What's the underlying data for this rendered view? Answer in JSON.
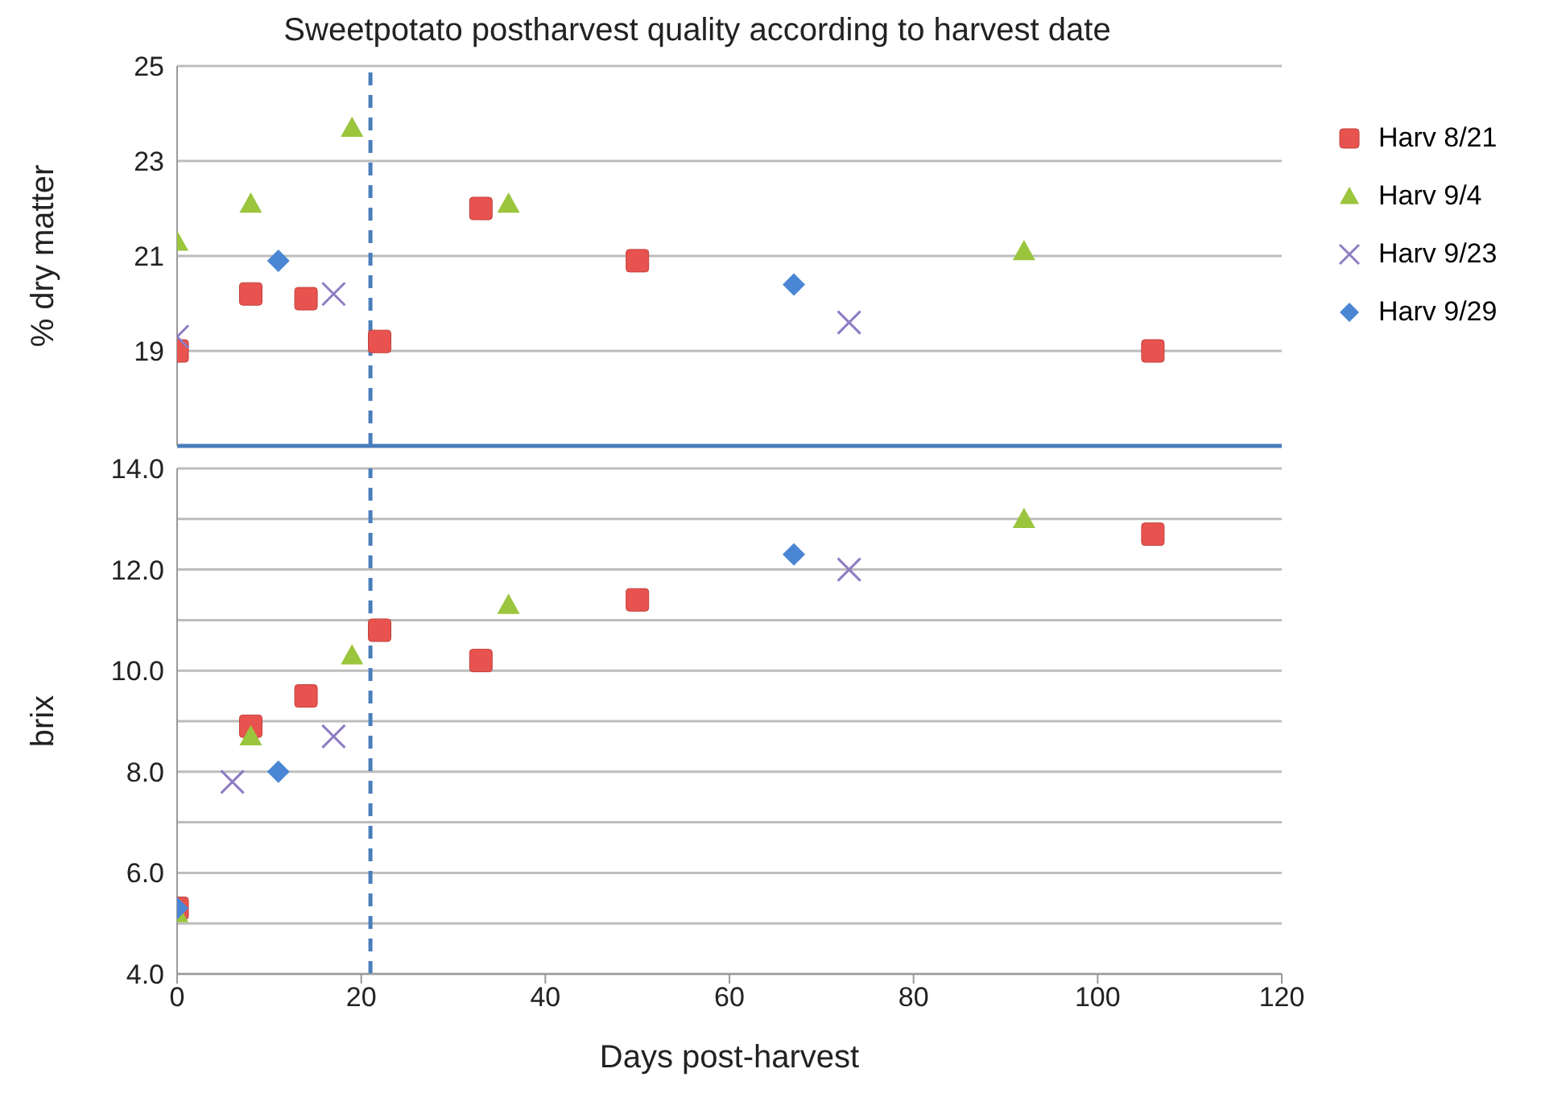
{
  "chart_data": [
    {
      "type": "scatter",
      "title": "Sweetpotato postharvest quality according to harvest date",
      "ylabel": "% dry matter",
      "xlim": [
        0,
        120
      ],
      "xticks": [
        0,
        20,
        40,
        60,
        80,
        100,
        120
      ],
      "ylim": [
        17,
        25
      ],
      "yticks": [
        19,
        21,
        23,
        25
      ],
      "tick_labels": "y",
      "grid": "y",
      "legend": "right",
      "ref_lines": [
        {
          "axis": "x",
          "value": 21,
          "color": "#4a7ebb",
          "line_style": "dashed"
        }
      ],
      "series": [
        {
          "name": "Harv 8/21",
          "color": "#e8534f",
          "marker": "square",
          "x": [
            0,
            8,
            14,
            22,
            33,
            50,
            106
          ],
          "values": [
            19.0,
            20.2,
            20.1,
            19.2,
            22.0,
            20.9,
            19.0
          ]
        },
        {
          "name": "Harv 9/4",
          "color": "#9bc53d",
          "marker": "triangle",
          "x": [
            0,
            8,
            19,
            36,
            92
          ],
          "values": [
            21.3,
            22.1,
            23.7,
            22.1,
            21.1
          ]
        },
        {
          "name": "Harv 9/23",
          "color": "#8e7cc3",
          "marker": "cross",
          "x": [
            0,
            17,
            73
          ],
          "values": [
            19.3,
            20.2,
            19.6
          ]
        },
        {
          "name": "Harv 9/29",
          "color": "#4a86d4",
          "marker": "diamond",
          "x": [
            11,
            67
          ],
          "values": [
            20.9,
            20.4
          ]
        }
      ]
    },
    {
      "type": "scatter",
      "xlabel": "Days post-harvest",
      "ylabel": "brix",
      "xlim": [
        0,
        120
      ],
      "xticks": [
        0,
        20,
        40,
        60,
        80,
        100,
        120
      ],
      "ylim": [
        4,
        14
      ],
      "yticks": [
        {
          "value": 4,
          "label": "4.0"
        },
        {
          "value": 5,
          "label": null
        },
        {
          "value": 6,
          "label": "6.0"
        },
        {
          "value": 7,
          "label": null
        },
        {
          "value": 8,
          "label": "8.0"
        },
        {
          "value": 9,
          "label": null
        },
        {
          "value": 10,
          "label": "10.0"
        },
        {
          "value": 11,
          "label": null
        },
        {
          "value": 12,
          "label": "12.0"
        },
        {
          "value": 13,
          "label": null
        },
        {
          "value": 14,
          "label": "14.0"
        }
      ],
      "grid": "y",
      "ref_lines": [
        {
          "axis": "x",
          "value": 21,
          "color": "#4a7ebb",
          "line_style": "dashed"
        }
      ],
      "series": [
        {
          "color": "#e8534f",
          "marker": "square",
          "x": [
            0,
            8,
            14,
            22,
            33,
            50,
            106
          ],
          "values": [
            5.3,
            8.9,
            9.5,
            10.8,
            10.2,
            11.4,
            12.7
          ]
        },
        {
          "color": "#9bc53d",
          "marker": "triangle",
          "x": [
            0,
            8,
            19,
            36,
            92
          ],
          "values": [
            5.2,
            8.7,
            10.3,
            11.3,
            13.0
          ]
        },
        {
          "color": "#8e7cc3",
          "marker": "cross",
          "x": [
            6,
            17,
            73
          ],
          "values": [
            7.8,
            8.7,
            12.0
          ]
        },
        {
          "color": "#4a86d4",
          "marker": "diamond",
          "x": [
            0,
            11,
            67
          ],
          "values": [
            5.3,
            8.0,
            12.3
          ]
        }
      ]
    }
  ]
}
